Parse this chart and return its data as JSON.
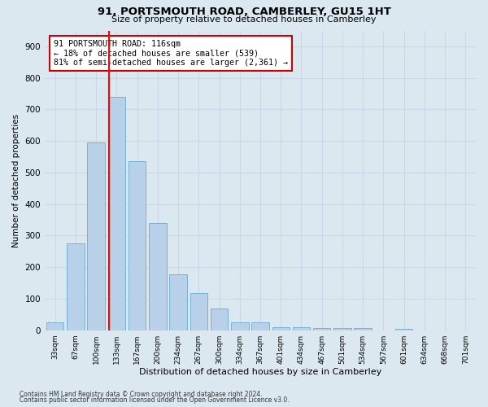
{
  "title": "91, PORTSMOUTH ROAD, CAMBERLEY, GU15 1HT",
  "subtitle": "Size of property relative to detached houses in Camberley",
  "xlabel": "Distribution of detached houses by size in Camberley",
  "ylabel": "Number of detached properties",
  "categories": [
    "33sqm",
    "67sqm",
    "100sqm",
    "133sqm",
    "167sqm",
    "200sqm",
    "234sqm",
    "267sqm",
    "300sqm",
    "334sqm",
    "367sqm",
    "401sqm",
    "434sqm",
    "467sqm",
    "501sqm",
    "534sqm",
    "567sqm",
    "601sqm",
    "634sqm",
    "668sqm",
    "701sqm"
  ],
  "values": [
    25,
    275,
    595,
    740,
    535,
    340,
    178,
    118,
    68,
    25,
    25,
    10,
    10,
    7,
    7,
    7,
    0,
    5,
    0,
    0,
    0
  ],
  "bar_color": "#b8d0e8",
  "bar_edge_color": "#6aaad4",
  "grid_color": "#c8d8ea",
  "background_color": "#dce8f0",
  "red_line_x": 2.62,
  "annotation_text": "91 PORTSMOUTH ROAD: 116sqm\n← 18% of detached houses are smaller (539)\n81% of semi-detached houses are larger (2,361) →",
  "annotation_box_color": "#ffffff",
  "annotation_box_edge": "#cc0000",
  "footer_line1": "Contains HM Land Registry data © Crown copyright and database right 2024.",
  "footer_line2": "Contains public sector information licensed under the Open Government Licence v3.0.",
  "ylim": [
    0,
    950
  ],
  "yticks": [
    0,
    100,
    200,
    300,
    400,
    500,
    600,
    700,
    800,
    900
  ]
}
